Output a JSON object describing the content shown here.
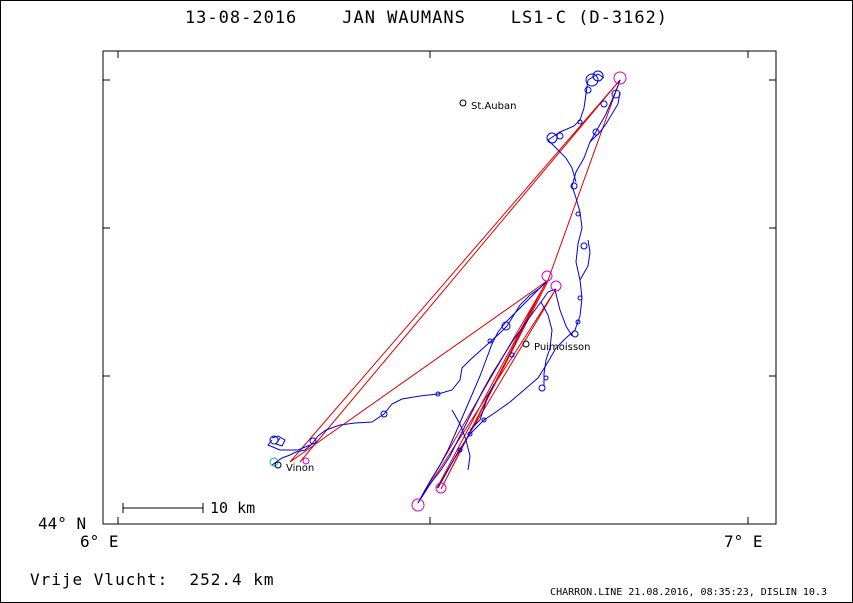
{
  "title": "13-08-2016    JAN WAUMANS    LS1-C (D-3162)",
  "axes": {
    "lat_label": "44° N",
    "lon_left_label": "6° E",
    "lon_right_label": "7° E"
  },
  "scale_bar": {
    "label": "10 km"
  },
  "places": [
    {
      "name": "St.Auban"
    },
    {
      "name": "Puimoisson"
    },
    {
      "name": "Vinon"
    }
  ],
  "distance_text": "Vrije Vlucht:  252.4 km",
  "footer_text": "CHARRON.LINE 21.08.2016, 08:35:23, DISLIN 10.3",
  "colors": {
    "track": "#0000d8",
    "task_line": "#e00000",
    "turnpoint": "#d000d0",
    "start_marker": "#00b0c0",
    "axes": "#000000"
  }
}
